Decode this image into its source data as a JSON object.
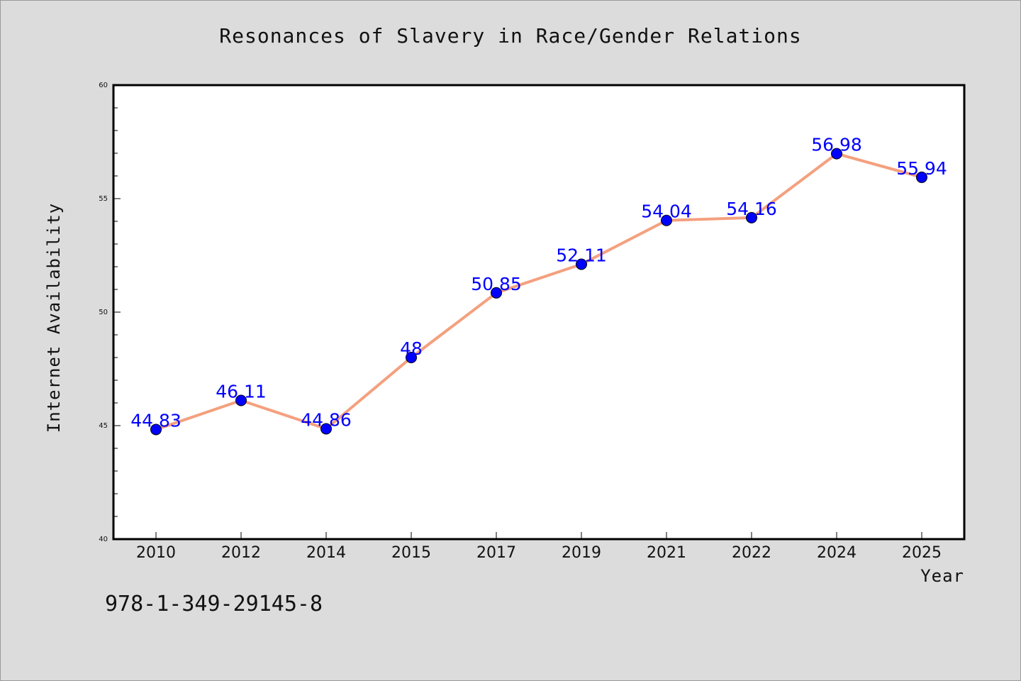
{
  "chart_data": {
    "type": "line",
    "title": "Resonances of Slavery in Race/Gender Relations",
    "xlabel": "Year",
    "ylabel": "Internet Availability",
    "categories": [
      "2010",
      "2012",
      "2014",
      "2015",
      "2017",
      "2019",
      "2021",
      "2022",
      "2024",
      "2025"
    ],
    "values": [
      44.83,
      46.11,
      44.86,
      48,
      50.85,
      52.11,
      54.04,
      54.16,
      56.98,
      55.94
    ],
    "value_labels": [
      "44.83",
      "46.11",
      "44.86",
      "48",
      "50.85",
      "52.11",
      "54.04",
      "54.16",
      "56.98",
      "55.94"
    ],
    "ylim": [
      40,
      60
    ],
    "y_major_ticks": [
      40,
      45,
      50,
      55,
      60
    ],
    "y_minor_step": 1,
    "grid": false,
    "legend": "none",
    "colors": {
      "line": "#f4a07e",
      "marker": "#0000ff",
      "label": "#0000ff",
      "plot_background": "#ffffff",
      "page_background": "#dcdcdc"
    }
  },
  "footer": {
    "isbn": "978-1-349-29145-8"
  }
}
